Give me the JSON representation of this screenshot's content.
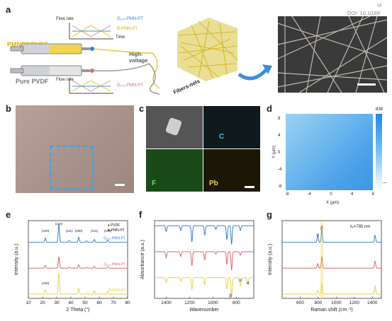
{
  "header": {
    "corner_text_1": "Vi",
    "corner_text_2": "DOI: 10.1039/"
  },
  "panel_labels": {
    "a": "a",
    "b": "b",
    "c": "c",
    "d": "d",
    "e": "e",
    "f": "f",
    "g": "g"
  },
  "panel_a": {
    "pmnpt_label": "PMNPT/PVDF",
    "pvdf_label": "Pure PVDF",
    "flow_rate": "Flow rate",
    "time": "Time",
    "legend_top_1": "G₂₀₀-PMN-PT",
    "legend_top_2": "B-PMN-PT",
    "legend_bottom": "G₂₀₀-PMN-PT",
    "high_voltage": "High-\nvoltage",
    "fibers_nets": "Fibers-nets"
  },
  "panel_c": {
    "label_C": "C",
    "label_F": "F",
    "label_Pb": "Pb"
  },
  "panel_d": {
    "colorbar_max": "838",
    "colorbar_min": "—",
    "xlabel": "X (μm)",
    "ylabel": "Y (μm)",
    "xticks": [
      "-8",
      "-4",
      "0",
      "4",
      "8"
    ],
    "yticks": [
      "8",
      "4",
      "0",
      "-4",
      "-8"
    ]
  },
  "chart_data": [
    {
      "panel": "e",
      "type": "line",
      "xlabel": "2 Theta (°)",
      "ylabel": "Intensity (a.u.)",
      "xlim": [
        10,
        80
      ],
      "xticks": [
        10,
        20,
        30,
        40,
        50,
        60,
        70,
        80
      ],
      "legend": [
        "PVDF",
        "PMN-PT"
      ],
      "peak_labels": [
        "(100)",
        "(110)",
        "(111)",
        "(200)",
        "(211)",
        "(220)",
        "(100)"
      ],
      "series": [
        {
          "name": "G₂₀₀-PMN-PT",
          "color": "#3b7fd6",
          "peaks": [
            [
              22,
              0.18
            ],
            [
              31.5,
              0.8
            ],
            [
              38.8,
              0.08
            ],
            [
              45.5,
              0.22
            ],
            [
              51,
              0.06
            ],
            [
              56.5,
              0.12
            ],
            [
              66,
              0.1
            ]
          ]
        },
        {
          "name": "G₂₀₀-PMN-PT",
          "color": "#d9686b",
          "peaks": [
            [
              22,
              0.12
            ],
            [
              31.5,
              0.5
            ],
            [
              38.8,
              0.04
            ],
            [
              45.5,
              0.15
            ],
            [
              51,
              0.04
            ],
            [
              56.5,
              0.08
            ],
            [
              66,
              0.06
            ]
          ]
        },
        {
          "name": "B-PMN-PT",
          "color": "#e8d24a",
          "peaks": [
            [
              22,
              0.2
            ],
            [
              31.5,
              0.9
            ],
            [
              38.8,
              0.05
            ],
            [
              45.5,
              0.25
            ],
            [
              51,
              0.05
            ],
            [
              56.5,
              0.15
            ],
            [
              66,
              0.12
            ]
          ]
        }
      ]
    },
    {
      "panel": "f",
      "type": "line",
      "xlabel": "Wavenumber",
      "ylabel": "Absorbance (a.u.)",
      "xlim": [
        1500,
        650
      ],
      "xticks": [
        1400,
        1200,
        1000,
        800
      ],
      "annotations": [
        "α",
        "β",
        "α"
      ],
      "series": [
        {
          "color": "#3b7fd6",
          "dips": [
            [
              1400,
              0.25
            ],
            [
              1275,
              0.2
            ],
            [
              1180,
              0.7
            ],
            [
              1070,
              0.4
            ],
            [
              975,
              0.15
            ],
            [
              880,
              0.6
            ],
            [
              840,
              0.8
            ],
            [
              765,
              0.2
            ]
          ]
        },
        {
          "color": "#d9686b",
          "dips": [
            [
              1400,
              0.25
            ],
            [
              1275,
              0.2
            ],
            [
              1180,
              0.6
            ],
            [
              1070,
              0.35
            ],
            [
              975,
              0.1
            ],
            [
              880,
              0.55
            ],
            [
              840,
              0.8
            ],
            [
              765,
              0.15
            ]
          ]
        },
        {
          "color": "#e8d24a",
          "dips": [
            [
              1400,
              0.2
            ],
            [
              1275,
              0.15
            ],
            [
              1180,
              0.5
            ],
            [
              1070,
              0.3
            ],
            [
              880,
              0.5
            ],
            [
              840,
              0.85
            ],
            [
              765,
              0.35
            ],
            [
              700,
              0.25
            ]
          ]
        }
      ]
    },
    {
      "panel": "g",
      "type": "line",
      "xlabel": "Raman shift (cm⁻¹)",
      "ylabel": "Intensity (a.u.)",
      "annotation": "λₑ=785 nm",
      "xlim": [
        400,
        1500
      ],
      "xticks": [
        600,
        800,
        1000,
        1200,
        1400
      ],
      "peak_labels": [
        "α",
        "β"
      ],
      "series": [
        {
          "color": "#3b7fd6",
          "peaks": [
            [
              795,
              0.3
            ],
            [
              840,
              0.55
            ],
            [
              1430,
              0.3
            ]
          ]
        },
        {
          "color": "#d9686b",
          "peaks": [
            [
              795,
              0.2
            ],
            [
              840,
              0.5
            ],
            [
              1430,
              0.3
            ]
          ]
        },
        {
          "color": "#e8d24a",
          "peaks": [
            [
              795,
              0.15
            ],
            [
              840,
              0.45
            ],
            [
              1430,
              0.35
            ]
          ]
        }
      ]
    }
  ]
}
